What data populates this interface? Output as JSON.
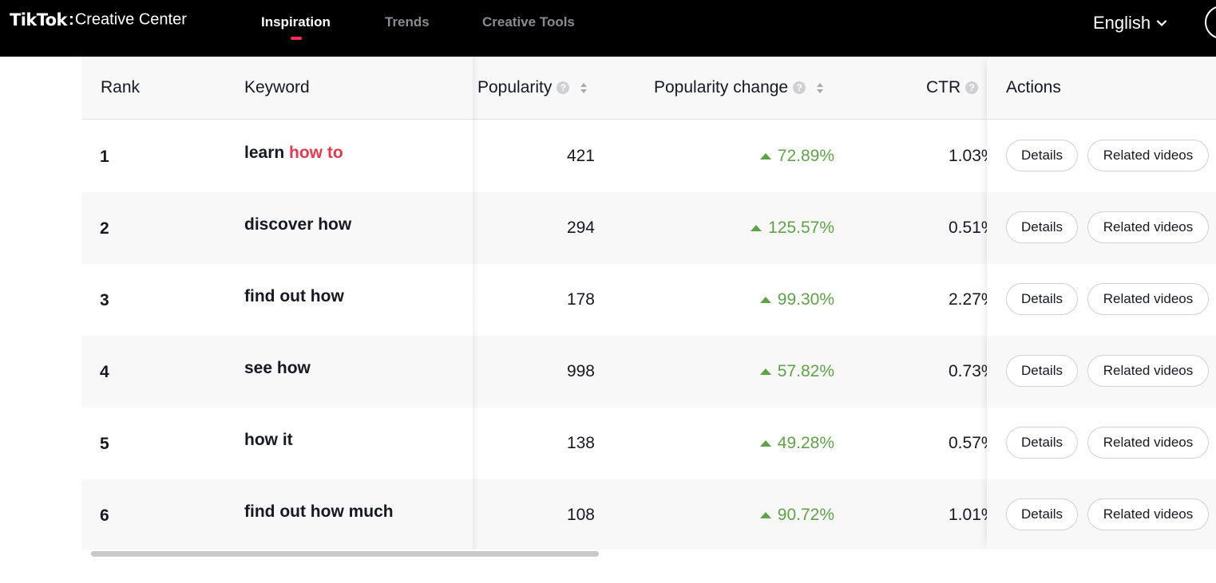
{
  "brand": {
    "tiktok": "TikTok",
    "separator": ":",
    "product": "Creative Center"
  },
  "nav": {
    "items": [
      {
        "label": "Inspiration",
        "active": true
      },
      {
        "label": "Trends",
        "active": false
      },
      {
        "label": "Creative Tools",
        "active": false
      }
    ],
    "accent_color": "#fe2c55"
  },
  "language": {
    "label": "English",
    "icon": "chevron-down-icon"
  },
  "table": {
    "columns": {
      "rank": "Rank",
      "keyword": "Keyword",
      "popularity": "Popularity",
      "popularity_change": "Popularity change",
      "ctr": "CTR",
      "actions": "Actions"
    },
    "rows": [
      {
        "rank": "1",
        "keyword_prefix": "learn ",
        "keyword_highlight": "how to",
        "popularity": "421",
        "change": "72.89%",
        "ctr": "1.03%"
      },
      {
        "rank": "2",
        "keyword_prefix": "discover how",
        "keyword_highlight": "",
        "popularity": "294",
        "change": "125.57%",
        "ctr": "0.51%"
      },
      {
        "rank": "3",
        "keyword_prefix": "find out how",
        "keyword_highlight": "",
        "popularity": "178",
        "change": "99.30%",
        "ctr": "2.27%"
      },
      {
        "rank": "4",
        "keyword_prefix": "see how",
        "keyword_highlight": "",
        "popularity": "998",
        "change": "57.82%",
        "ctr": "0.73%"
      },
      {
        "rank": "5",
        "keyword_prefix": "how it",
        "keyword_highlight": "",
        "popularity": "138",
        "change": "49.28%",
        "ctr": "0.57%"
      },
      {
        "rank": "6",
        "keyword_prefix": "find out how much",
        "keyword_highlight": "",
        "popularity": "108",
        "change": "90.72%",
        "ctr": "1.01%"
      }
    ],
    "action_labels": {
      "details": "Details",
      "related": "Related videos"
    },
    "colors": {
      "positive_change": "#5ea346",
      "keyword_highlight": "#e8384f",
      "header_bg": "#f8f8f8"
    }
  }
}
